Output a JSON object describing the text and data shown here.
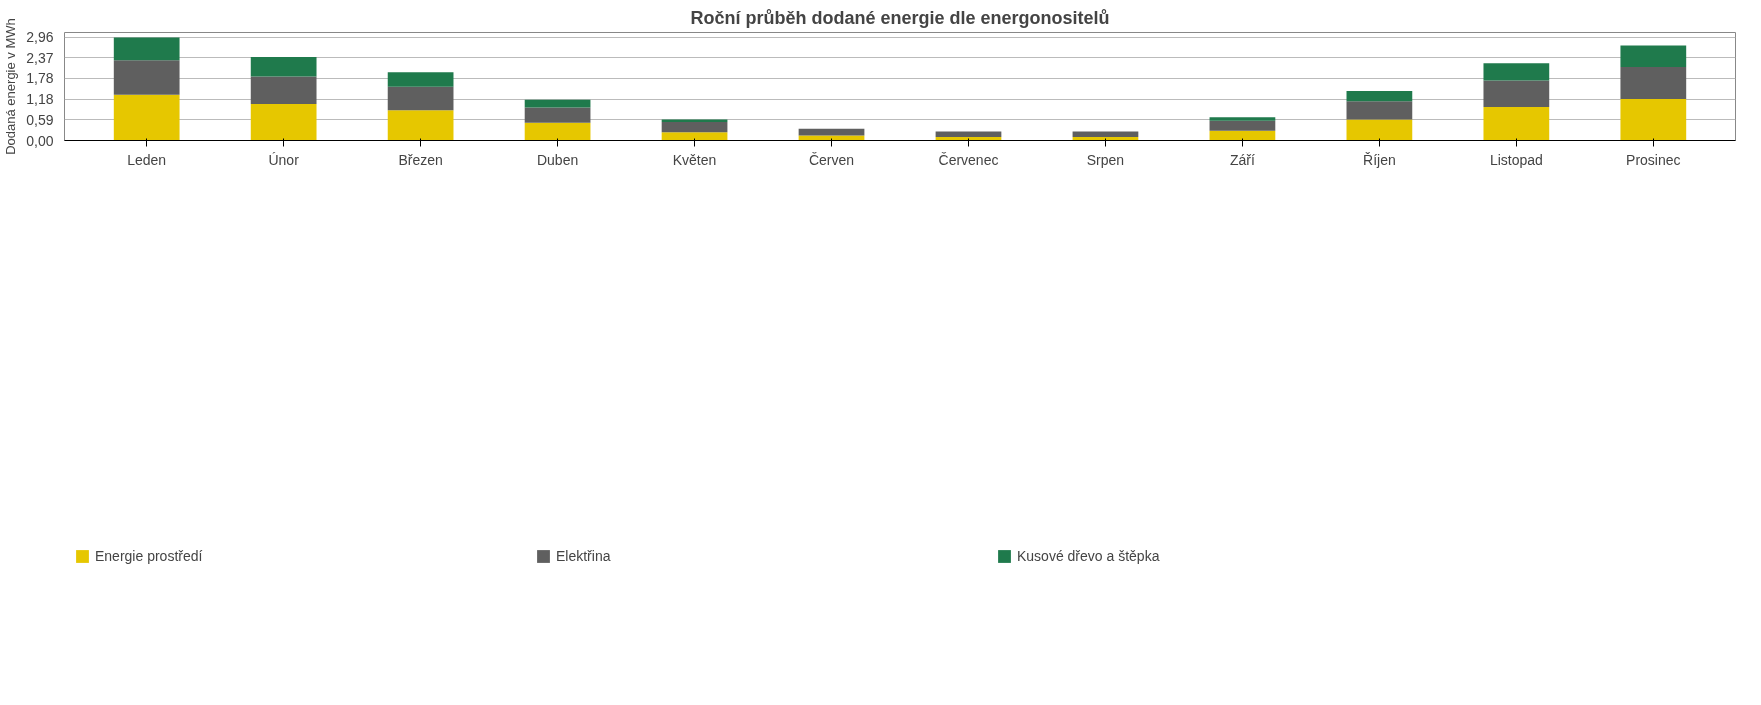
{
  "chart_data": {
    "type": "bar",
    "title": "Roční průběh dodané energie dle energonositelů",
    "ylabel": "Dodaná energie v MWh",
    "categories": [
      "Leden",
      "Únor",
      "Březen",
      "Duben",
      "Květen",
      "Červen",
      "Červenec",
      "Srpen",
      "Září",
      "Říjen",
      "Listopad",
      "Prosinec"
    ],
    "stacked": true,
    "series": [
      {
        "name": "Energie prostředí",
        "color": "#e6c700",
        "values": [
          1.31,
          1.05,
          0.87,
          0.51,
          0.24,
          0.14,
          0.1,
          0.1,
          0.28,
          0.6,
          0.96,
          1.19
        ]
      },
      {
        "name": "Elektřina",
        "color": "#5f5f5f",
        "values": [
          0.99,
          0.79,
          0.67,
          0.44,
          0.29,
          0.2,
          0.16,
          0.16,
          0.29,
          0.53,
          0.76,
          0.92
        ]
      },
      {
        "name": "Kusové dřevo a štěpka",
        "color": "#1f7a4c",
        "values": [
          0.66,
          0.56,
          0.42,
          0.22,
          0.07,
          null,
          null,
          null,
          0.1,
          0.29,
          0.5,
          0.62
        ]
      }
    ],
    "ylim": [
      0,
      3.1
    ],
    "yticks": [
      {
        "value": 0,
        "label": "0,00"
      },
      {
        "value": 0.59,
        "label": "0,59"
      },
      {
        "value": 1.18,
        "label": "1,18"
      },
      {
        "value": 1.78,
        "label": "1,78"
      },
      {
        "value": 2.37,
        "label": "2,37"
      },
      {
        "value": 2.96,
        "label": "2,96"
      }
    ],
    "grid": "y",
    "legend": "bottom"
  }
}
